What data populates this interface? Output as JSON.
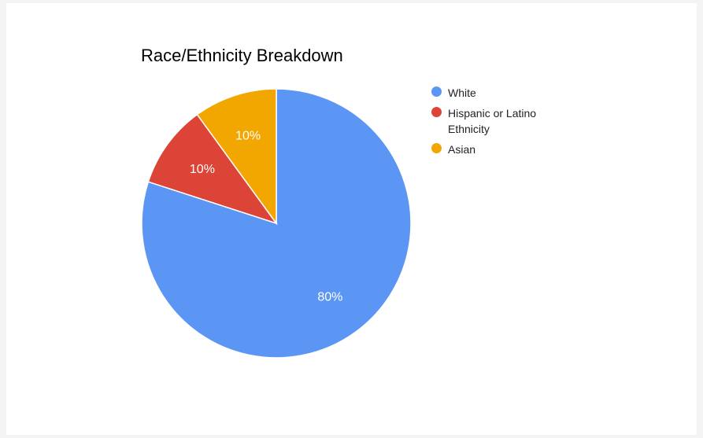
{
  "chart_data": {
    "type": "pie",
    "title": "Race/Ethnicity Breakdown",
    "slices": [
      {
        "label": "White",
        "value": 80,
        "display": "80%",
        "color": "#5b96f5"
      },
      {
        "label": "Hispanic or Latino Ethnicity",
        "value": 10,
        "display": "10%",
        "color": "#db4437"
      },
      {
        "label": "Asian",
        "value": 10,
        "display": "10%",
        "color": "#f2a600"
      }
    ],
    "start_angle": "12 o'clock",
    "direction": "clockwise",
    "legend_position": "right"
  }
}
